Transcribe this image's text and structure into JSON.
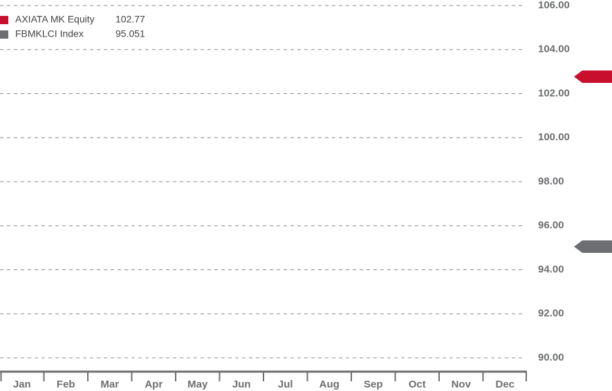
{
  "chart_data": {
    "type": "line",
    "categories": [
      "Jan",
      "Feb",
      "Mar",
      "Apr",
      "May",
      "Jun",
      "Jul",
      "Aug",
      "Sep",
      "Oct",
      "Nov",
      "Dec"
    ],
    "series": [
      {
        "name": "AXIATA MK Equity",
        "color": "#c8102e",
        "last_value": 102.77
      },
      {
        "name": "FBMKLCI Index",
        "color": "#6d6e71",
        "last_value": 95.051
      }
    ],
    "ylim": [
      90,
      106
    ],
    "yticks": [
      {
        "value": 90,
        "label": "90.00"
      },
      {
        "value": 92,
        "label": "92.00"
      },
      {
        "value": 94,
        "label": "94.00"
      },
      {
        "value": 96,
        "label": "96.00"
      },
      {
        "value": 98,
        "label": "98.00"
      },
      {
        "value": 100,
        "label": "100.00"
      },
      {
        "value": 102,
        "label": "102.00"
      },
      {
        "value": 104,
        "label": "104.00"
      },
      {
        "value": 106,
        "label": "106.00"
      }
    ],
    "grid": true
  }
}
